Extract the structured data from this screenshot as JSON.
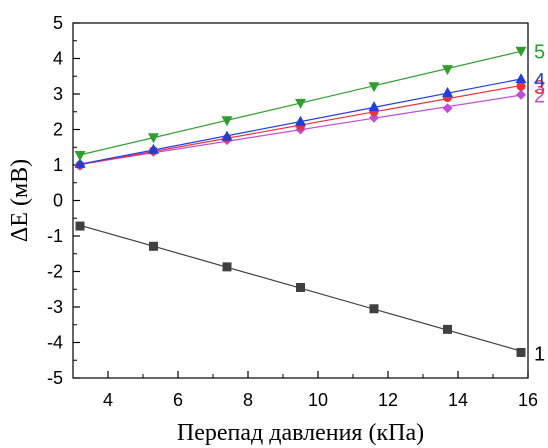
{
  "chart_data": {
    "type": "scatter",
    "xlabel": "Перепад давления (кПа)",
    "ylabel": "ΔE (мВ)",
    "xlim": [
      3,
      16
    ],
    "ylim": [
      -5,
      5
    ],
    "x_ticks": [
      "4",
      "6",
      "8",
      "10",
      "12",
      "14",
      "16"
    ],
    "y_ticks": [
      "5",
      "4",
      "3",
      "2",
      "1",
      "0",
      "-1",
      "-2",
      "-3",
      "-4",
      "-5"
    ],
    "x": [
      3.2,
      5.3,
      7.4,
      9.5,
      11.6,
      13.7,
      15.8
    ],
    "grid": false,
    "series": [
      {
        "name": "1",
        "color": "#404040",
        "marker": "square",
        "values": [
          -0.72,
          -1.29,
          -1.87,
          -2.45,
          -3.05,
          -3.63,
          -4.28
        ]
      },
      {
        "name": "2",
        "color": "#c04cd8",
        "marker": "diamond",
        "values": [
          0.98,
          1.37,
          1.7,
          2.0,
          2.33,
          2.6,
          2.98
        ]
      },
      {
        "name": "3",
        "color": "#e8323c",
        "marker": "circle",
        "values": [
          1.0,
          1.4,
          1.75,
          2.1,
          2.5,
          2.9,
          3.22
        ]
      },
      {
        "name": "4",
        "color": "#1f3de0",
        "marker": "triangle-up",
        "values": [
          1.03,
          1.43,
          1.8,
          2.22,
          2.63,
          3.03,
          3.42
        ]
      },
      {
        "name": "5",
        "color": "#2ca02c",
        "marker": "triangle-down",
        "values": [
          1.28,
          1.78,
          2.26,
          2.75,
          3.22,
          3.7,
          4.22
        ]
      }
    ]
  }
}
